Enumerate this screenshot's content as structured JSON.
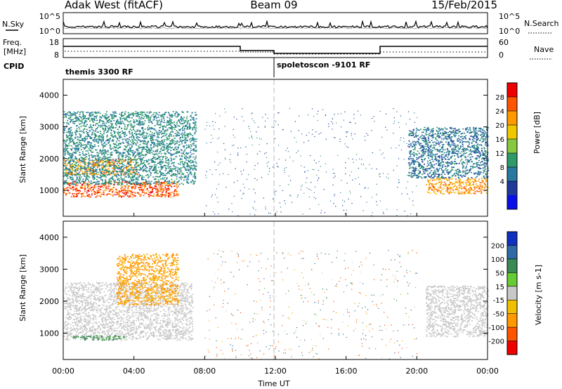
{
  "header": {
    "station": "Adak West (fitACF)",
    "beam": "Beam 09",
    "date": "15/Feb/2015"
  },
  "sky_panel": {
    "left_label": "N.Sky",
    "right_label": "N.Search",
    "left_ticks": [
      "10^5",
      "10^0"
    ],
    "right_ticks": [
      "10^5",
      "10^0"
    ]
  },
  "freq_panel": {
    "left_label_line1": "Freq.",
    "left_label_line2": "[MHz]",
    "left_ticks": [
      "18",
      "8"
    ],
    "right_label": "Nave",
    "right_ticks": [
      "60",
      "0"
    ]
  },
  "cpid_panel": {
    "label": "CPID",
    "programs": [
      "themis 3300 RF",
      "spoletoscon -9101 RF"
    ]
  },
  "x_axis": {
    "label": "Time UT",
    "ticks": [
      "00:00",
      "04:00",
      "08:00",
      "12:00",
      "16:00",
      "20:00",
      "00:00"
    ]
  },
  "chart_data": [
    {
      "type": "heatmap",
      "title": "Power",
      "ylabel": "Slant Range [km]",
      "xlabel": "",
      "x_range_hours": [
        0,
        24
      ],
      "ylim": [
        180,
        4500
      ],
      "yticks": [
        1000,
        2000,
        3000,
        4000
      ],
      "colorbar": {
        "label": "Power [dB]",
        "ticks": [
          "28",
          "24",
          "20",
          "16",
          "12",
          "8",
          "4"
        ],
        "colors": [
          "#ee0000",
          "#ff5500",
          "#ff9900",
          "#f0c800",
          "#88c840",
          "#2e9a6a",
          "#2878a0",
          "#1e3a9a",
          "#0a10e8"
        ]
      },
      "regions": [
        {
          "description": "strong scatter band",
          "t_start": 0,
          "t_end": 6.5,
          "range_km": [
            800,
            1300
          ],
          "power_db": 28
        },
        {
          "description": "upper scatter band",
          "t_start": 0,
          "t_end": 4.2,
          "range_km": [
            1500,
            2000
          ],
          "power_db": 24
        },
        {
          "description": "weak scatter",
          "t_start": 0,
          "t_end": 7.5,
          "range_km": [
            1200,
            3500
          ],
          "power_db": 10
        },
        {
          "description": "strong scatter band",
          "t_start": 20.5,
          "t_end": 24,
          "range_km": [
            900,
            1400
          ],
          "power_db": 24
        },
        {
          "description": "weak scatter",
          "t_start": 19.5,
          "t_end": 24,
          "range_km": [
            1400,
            3000
          ],
          "power_db": 8
        }
      ]
    },
    {
      "type": "heatmap",
      "title": "Velocity",
      "ylabel": "Slant Range [km]",
      "xlabel": "Time UT",
      "x_range_hours": [
        0,
        24
      ],
      "ylim": [
        180,
        4500
      ],
      "yticks": [
        1000,
        2000,
        3000,
        4000
      ],
      "colorbar": {
        "label": "Velocity [m s-1]",
        "ticks": [
          "200",
          "100",
          "50",
          "15",
          "-15",
          "-50",
          "-100",
          "-200"
        ],
        "colors": [
          "#1030c0",
          "#2f6aa6",
          "#3a8a55",
          "#66cc33",
          "#c8c8c8",
          "#f0c000",
          "#ff9900",
          "#ff5500",
          "#ee0000"
        ]
      },
      "regions": [
        {
          "description": "low-velocity scatter",
          "t_start": 0,
          "t_end": 7.3,
          "range_km": [
            800,
            2600
          ],
          "velocity_ms": 0
        },
        {
          "description": "negative velocity patches",
          "t_start": 3,
          "t_end": 6.5,
          "range_km": [
            1900,
            3500
          ],
          "velocity_ms": -40
        },
        {
          "description": "positive velocity edge",
          "t_start": 0.5,
          "t_end": 3.5,
          "range_km": [
            800,
            950
          ],
          "velocity_ms": 40
        },
        {
          "description": "low-velocity scatter",
          "t_start": 20.5,
          "t_end": 24,
          "range_km": [
            900,
            2500
          ],
          "velocity_ms": 0
        }
      ]
    }
  ]
}
